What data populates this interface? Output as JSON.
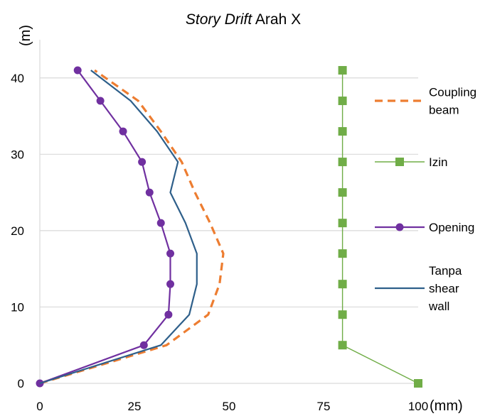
{
  "chart_data": {
    "type": "line",
    "title_italic": "Story Drift",
    "title_rest": " Arah X",
    "xlabel": "(mm)",
    "ylabel": "(m)",
    "xlim": [
      0,
      100
    ],
    "ylim": [
      0,
      45
    ],
    "xticks": [
      0,
      25,
      50,
      75,
      100
    ],
    "yticks": [
      0,
      10,
      20,
      30,
      40
    ],
    "grid": "horizontal",
    "legend_position": "right",
    "series": [
      {
        "name": "Coupling beam",
        "color": "#ED7D31",
        "style": "dashed",
        "marker": "none",
        "points": [
          [
            0,
            0
          ],
          [
            33.5,
            5
          ],
          [
            44.5,
            9
          ],
          [
            47.5,
            13
          ],
          [
            48.5,
            17
          ],
          [
            45,
            21
          ],
          [
            41,
            25
          ],
          [
            37.5,
            29
          ],
          [
            32,
            33
          ],
          [
            26,
            37
          ],
          [
            14.5,
            41
          ]
        ]
      },
      {
        "name": "Izin",
        "color": "#70AD47",
        "style": "solid",
        "marker": "square",
        "points": [
          [
            100,
            0
          ],
          [
            80,
            5
          ],
          [
            80,
            9
          ],
          [
            80,
            13
          ],
          [
            80,
            17
          ],
          [
            80,
            21
          ],
          [
            80,
            25
          ],
          [
            80,
            29
          ],
          [
            80,
            33
          ],
          [
            80,
            37
          ],
          [
            80,
            41
          ]
        ]
      },
      {
        "name": "Opening",
        "color": "#7030A0",
        "style": "solid",
        "marker": "circle",
        "points": [
          [
            0,
            0
          ],
          [
            27.5,
            5
          ],
          [
            34,
            9
          ],
          [
            34.5,
            13
          ],
          [
            34.5,
            17
          ],
          [
            32,
            21
          ],
          [
            29,
            25
          ],
          [
            27,
            29
          ],
          [
            22,
            33
          ],
          [
            16,
            37
          ],
          [
            10,
            41
          ]
        ]
      },
      {
        "name": "Tanpa shear wall",
        "color": "#2E5F8A",
        "style": "solid",
        "marker": "none",
        "points": [
          [
            0,
            0
          ],
          [
            32,
            5
          ],
          [
            39.5,
            9
          ],
          [
            41.5,
            13
          ],
          [
            41.5,
            17
          ],
          [
            38.5,
            21
          ],
          [
            34.5,
            25
          ],
          [
            36.5,
            29
          ],
          [
            31,
            33
          ],
          [
            24,
            37
          ],
          [
            13.5,
            41
          ]
        ]
      }
    ],
    "legend_lines": [
      [
        "Coupling",
        "beam"
      ],
      [
        "Izin"
      ],
      [
        "Opening"
      ],
      [
        "Tanpa",
        "shear",
        "wall"
      ]
    ]
  }
}
